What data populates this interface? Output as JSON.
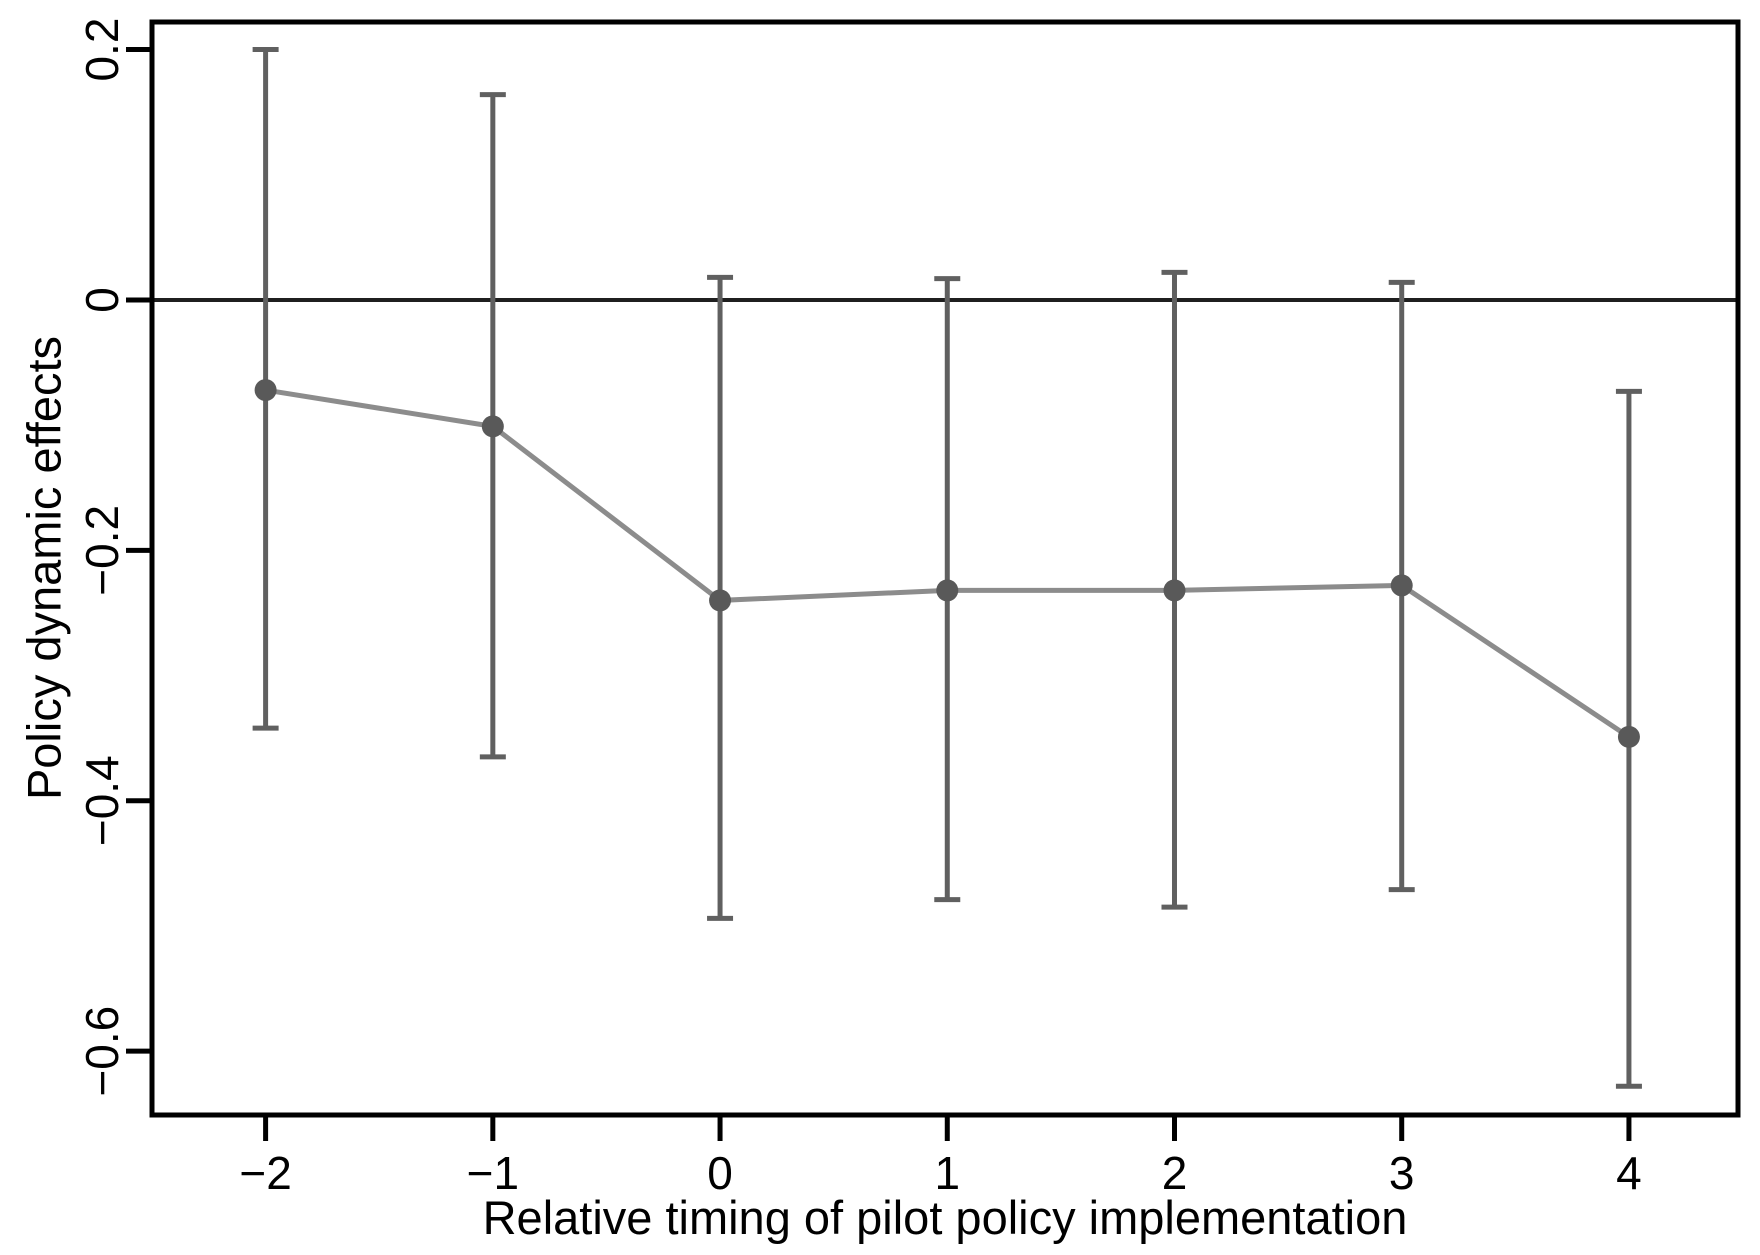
{
  "figure": {
    "background_color": "#ffffff",
    "x_axis_title": "Relative timing of pilot policy implementation",
    "y_axis_title": "Policy dynamic effects"
  },
  "chart_data": {
    "type": "line",
    "subtype": "event-study-errorbar",
    "title": "",
    "xlabel": "Relative timing of pilot policy implementation",
    "ylabel": "Policy dynamic effects",
    "x": [
      -2,
      -1,
      0,
      1,
      2,
      3,
      4
    ],
    "series": [
      {
        "name": "Policy dynamic effects",
        "estimates": [
          -0.072,
          -0.101,
          -0.24,
          -0.232,
          -0.232,
          -0.228,
          -0.349
        ],
        "ci_low": [
          -0.342,
          -0.365,
          -0.494,
          -0.479,
          -0.485,
          -0.471,
          -0.628
        ],
        "ci_high": [
          0.2,
          0.164,
          0.018,
          0.017,
          0.022,
          0.014,
          -0.073
        ]
      }
    ],
    "reference_line_y": 0,
    "xlim": [
      -2.5,
      4.48
    ],
    "ylim": [
      -0.651,
      0.222
    ],
    "xticks": [
      -2,
      -1,
      0,
      1,
      2,
      3,
      4
    ],
    "xtick_labels": [
      "−2",
      "−1",
      "0",
      "1",
      "2",
      "3",
      "4"
    ],
    "yticks": [
      0.2,
      0,
      -0.2,
      -0.4,
      -0.6
    ],
    "ytick_labels": [
      "0.2",
      "0",
      "−0.2",
      "−0.4",
      "−0.6"
    ],
    "grid": false,
    "legend": null,
    "colors": {
      "marker": "#595959",
      "error_bar": "#606060",
      "connecting_line": "#8c8c8c",
      "reference_line": "#1f1f1f",
      "frame": "#000000",
      "tick": "#000000",
      "text": "#000000",
      "background": "#ffffff"
    },
    "marker_radius": 11,
    "line_width": 5,
    "error_bar_width": 5,
    "error_cap_half_width": 13
  }
}
